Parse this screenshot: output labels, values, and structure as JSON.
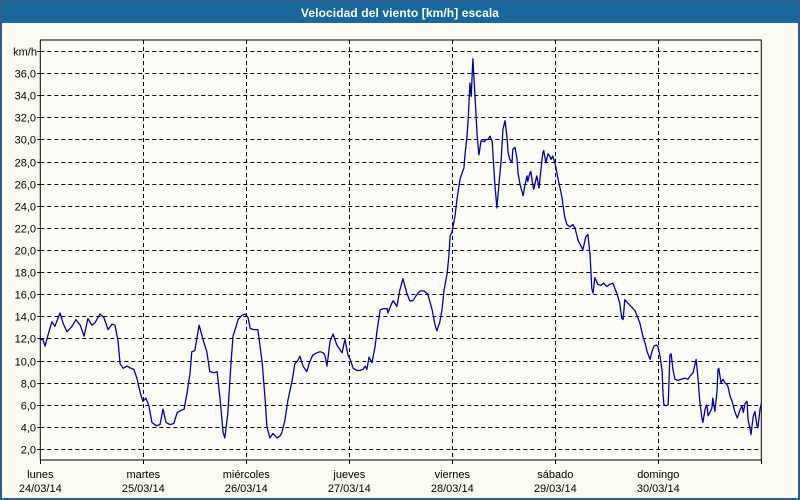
{
  "title": "Velocidad del viento [km/h] escala",
  "colors": {
    "titlebar_bg": "#17699d",
    "title_text": "#ffffff",
    "window_border": "#2d5e8c",
    "page_bg": "#fbfbf1",
    "plot_bg": "#fdfdf8",
    "grid": "#000000",
    "series_line": "#0000a6"
  },
  "chart_data": {
    "type": "line",
    "title": "Velocidad del viento [km/h] escala",
    "ylabel": "km/h",
    "unit_label": "km/h",
    "ylim": [
      1,
      39
    ],
    "y_grid_step": 2,
    "y_tick_labels": [
      "2,0",
      "4,0",
      "6,0",
      "8,0",
      "10,0",
      "12,0",
      "14,0",
      "16,0",
      "18,0",
      "20,0",
      "22,0",
      "24,0",
      "26,0",
      "28,0",
      "30,0",
      "32,0",
      "34,0",
      "36,0"
    ],
    "grid": "dashed",
    "legend": "none",
    "hours_total": 168,
    "x_days": [
      {
        "name": "lunes",
        "date": "24/03/14"
      },
      {
        "name": "martes",
        "date": "25/03/14"
      },
      {
        "name": "miércoles",
        "date": "26/03/14"
      },
      {
        "name": "jueves",
        "date": "27/03/14"
      },
      {
        "name": "viernes",
        "date": "28/03/14"
      },
      {
        "name": "sábado",
        "date": "29/03/14"
      },
      {
        "name": "domingo",
        "date": "30/03/14"
      }
    ],
    "series": [
      {
        "name": "Velocidad del viento [km/h]",
        "color": "#0000a6",
        "points_t_hours_v_kmh": [
          [
            0,
            11.9
          ],
          [
            0.6,
            11.9
          ],
          [
            1.1,
            11.3
          ],
          [
            1.8,
            12.3
          ],
          [
            2.7,
            13.5
          ],
          [
            3.4,
            13.1
          ],
          [
            4.6,
            14.3
          ],
          [
            5.3,
            13.4
          ],
          [
            6.2,
            12.6
          ],
          [
            7.4,
            13.1
          ],
          [
            8.3,
            13.7
          ],
          [
            9.3,
            13.2
          ],
          [
            10.2,
            12.2
          ],
          [
            11.1,
            13.8
          ],
          [
            12,
            13.2
          ],
          [
            12.7,
            13.4
          ],
          [
            13.9,
            14.2
          ],
          [
            14.8,
            13.9
          ],
          [
            15.8,
            12.8
          ],
          [
            16.7,
            13.3
          ],
          [
            17.4,
            13.2
          ],
          [
            18.1,
            11.8
          ],
          [
            18.6,
            9.7
          ],
          [
            19.3,
            9.3
          ],
          [
            20.2,
            9.5
          ],
          [
            21.1,
            9.3
          ],
          [
            21.8,
            9.2
          ],
          [
            22.5,
            8.4
          ],
          [
            23.2,
            7.2
          ],
          [
            23.9,
            6.3
          ],
          [
            24.6,
            6.6
          ],
          [
            25.3,
            5.9
          ],
          [
            26,
            4.4
          ],
          [
            27,
            4.1
          ],
          [
            27.9,
            4.2
          ],
          [
            28.6,
            5.6
          ],
          [
            29.3,
            4.4
          ],
          [
            30.2,
            4.2
          ],
          [
            31.1,
            4.3
          ],
          [
            31.9,
            5.3
          ],
          [
            32.8,
            5.5
          ],
          [
            33.5,
            5.6
          ],
          [
            34.2,
            7.1
          ],
          [
            34.9,
            8.9
          ],
          [
            35.3,
            10.8
          ],
          [
            36,
            10.9
          ],
          [
            37,
            13.2
          ],
          [
            37.9,
            11.9
          ],
          [
            38.8,
            10.8
          ],
          [
            39.5,
            9
          ],
          [
            40.5,
            8.9
          ],
          [
            41.2,
            9
          ],
          [
            41.9,
            6.5
          ],
          [
            42.6,
            3.5
          ],
          [
            43,
            3
          ],
          [
            43.7,
            5.2
          ],
          [
            44.4,
            9.5
          ],
          [
            44.9,
            12.2
          ],
          [
            45.4,
            12.8
          ],
          [
            46.1,
            13.7
          ],
          [
            47,
            14.1
          ],
          [
            47.7,
            14.2
          ],
          [
            48.4,
            13.9
          ],
          [
            48.9,
            12.9
          ],
          [
            49.8,
            12.8
          ],
          [
            50.7,
            12.8
          ],
          [
            51.7,
            9.8
          ],
          [
            52.4,
            6.4
          ],
          [
            52.8,
            4
          ],
          [
            53.5,
            3
          ],
          [
            54.2,
            3.4
          ],
          [
            55.2,
            3
          ],
          [
            55.9,
            3.2
          ],
          [
            56.3,
            3.5
          ],
          [
            57,
            4.6
          ],
          [
            57.7,
            6.4
          ],
          [
            58.7,
            8.2
          ],
          [
            59.3,
            9.7
          ],
          [
            60,
            10
          ],
          [
            60.5,
            10.4
          ],
          [
            61.2,
            9.5
          ],
          [
            62.1,
            9
          ],
          [
            62.8,
            9.9
          ],
          [
            63.5,
            10.5
          ],
          [
            64.5,
            10.7
          ],
          [
            65.2,
            10.8
          ],
          [
            65.9,
            10.7
          ],
          [
            66.3,
            10.5
          ],
          [
            66.8,
            9.5
          ],
          [
            67.5,
            11.7
          ],
          [
            68.2,
            12.4
          ],
          [
            69.1,
            11.4
          ],
          [
            69.8,
            11
          ],
          [
            70.3,
            10.7
          ],
          [
            71,
            11.9
          ],
          [
            71.7,
            10.5
          ],
          [
            72.2,
            10.1
          ],
          [
            72.9,
            9.3
          ],
          [
            73.8,
            9.1
          ],
          [
            74.5,
            9.1
          ],
          [
            75.2,
            9.2
          ],
          [
            75.7,
            9.5
          ],
          [
            76.1,
            9.2
          ],
          [
            76.6,
            10.3
          ],
          [
            77.3,
            9.8
          ],
          [
            78,
            11.3
          ],
          [
            78.5,
            12.8
          ],
          [
            79.2,
            14.6
          ],
          [
            80.1,
            14.7
          ],
          [
            80.8,
            14.7
          ],
          [
            81,
            14.3
          ],
          [
            81.9,
            15.2
          ],
          [
            82.2,
            15.4
          ],
          [
            83.1,
            14.9
          ],
          [
            83.8,
            16.4
          ],
          [
            84.5,
            17.4
          ],
          [
            85.4,
            16.1
          ],
          [
            86.1,
            15.4
          ],
          [
            86.8,
            15.4
          ],
          [
            87.8,
            16
          ],
          [
            88.5,
            16.3
          ],
          [
            89.4,
            16.3
          ],
          [
            90.3,
            16
          ],
          [
            91.3,
            14.6
          ],
          [
            92,
            13.2
          ],
          [
            92.4,
            12.7
          ],
          [
            93.1,
            13.5
          ],
          [
            93.6,
            14.6
          ],
          [
            94.1,
            16.4
          ],
          [
            94.8,
            17.9
          ],
          [
            95.2,
            19.5
          ],
          [
            95.5,
            21.3
          ],
          [
            95.9,
            21.6
          ],
          [
            96.6,
            23
          ],
          [
            97.1,
            24.6
          ],
          [
            97.8,
            26.4
          ],
          [
            98.3,
            27
          ],
          [
            98.7,
            27.4
          ],
          [
            99,
            28.8
          ],
          [
            99.4,
            30.2
          ],
          [
            99.7,
            31.8
          ],
          [
            100.1,
            35.1
          ],
          [
            100.4,
            33.9
          ],
          [
            100.8,
            37.3
          ],
          [
            101.3,
            33.9
          ],
          [
            101.8,
            30.3
          ],
          [
            102.2,
            28.6
          ],
          [
            102.7,
            29.9
          ],
          [
            103.4,
            29.8
          ],
          [
            103.9,
            30
          ],
          [
            104.3,
            30
          ],
          [
            104.8,
            30.3
          ],
          [
            105.3,
            29.8
          ],
          [
            105.9,
            26
          ],
          [
            106.4,
            23.8
          ],
          [
            106.9,
            26.1
          ],
          [
            107.4,
            28.2
          ],
          [
            107.8,
            30.9
          ],
          [
            108.3,
            31.7
          ],
          [
            108.8,
            30
          ],
          [
            109,
            28.8
          ],
          [
            109.4,
            28.2
          ],
          [
            109.9,
            27.9
          ],
          [
            110.1,
            29.1
          ],
          [
            110.6,
            29.3
          ],
          [
            111.1,
            28.2
          ],
          [
            111.3,
            27
          ],
          [
            111.8,
            25.9
          ],
          [
            112.3,
            25.2
          ],
          [
            112.5,
            24.9
          ],
          [
            112.9,
            25.8
          ],
          [
            113.4,
            26.7
          ],
          [
            113.6,
            26.2
          ],
          [
            114.1,
            27
          ],
          [
            114.3,
            27.1
          ],
          [
            114.8,
            25.8
          ],
          [
            115,
            25.5
          ],
          [
            115.5,
            26.4
          ],
          [
            115.7,
            26.7
          ],
          [
            116.2,
            25.6
          ],
          [
            116.9,
            28.2
          ],
          [
            117.1,
            28.8
          ],
          [
            117.3,
            29
          ],
          [
            117.8,
            27.9
          ],
          [
            118.3,
            28.7
          ],
          [
            118.7,
            28.5
          ],
          [
            119,
            28.2
          ],
          [
            119.4,
            28.5
          ],
          [
            119.9,
            27.9
          ],
          [
            120.6,
            26.5
          ],
          [
            121.5,
            24.9
          ],
          [
            122.2,
            23
          ],
          [
            122.7,
            22.3
          ],
          [
            123.4,
            22.1
          ],
          [
            124.1,
            22.3
          ],
          [
            124.6,
            22
          ],
          [
            125.3,
            20.9
          ],
          [
            126.2,
            20.2
          ],
          [
            126.4,
            20
          ],
          [
            127.1,
            21.2
          ],
          [
            127.6,
            21.4
          ],
          [
            128.1,
            19.5
          ],
          [
            128.5,
            16.5
          ],
          [
            128.8,
            16.1
          ],
          [
            129.2,
            17.5
          ],
          [
            129.9,
            16.9
          ],
          [
            130.6,
            16.8
          ],
          [
            131.3,
            17
          ],
          [
            132,
            16.7
          ],
          [
            132.7,
            16.9
          ],
          [
            133.4,
            17
          ],
          [
            134.3,
            16.1
          ],
          [
            135,
            15.2
          ],
          [
            135.5,
            13.8
          ],
          [
            135.8,
            13.7
          ],
          [
            136.2,
            15.5
          ],
          [
            136.9,
            15.2
          ],
          [
            137.4,
            15
          ],
          [
            138.6,
            14.5
          ],
          [
            139.3,
            13.8
          ],
          [
            139.7,
            13.4
          ],
          [
            140.4,
            12.2
          ],
          [
            140.9,
            11.6
          ],
          [
            141.4,
            10.8
          ],
          [
            142.1,
            10.1
          ],
          [
            142.5,
            10.8
          ],
          [
            143,
            11.3
          ],
          [
            143.5,
            11.4
          ],
          [
            143.9,
            11.3
          ],
          [
            144.4,
            10.4
          ],
          [
            144.9,
            9
          ],
          [
            145.1,
            7
          ],
          [
            145.3,
            6
          ],
          [
            145.8,
            5.9
          ],
          [
            146.3,
            6
          ],
          [
            146.7,
            10.5
          ],
          [
            147,
            10.6
          ],
          [
            147.4,
            9.2
          ],
          [
            147.9,
            8.3
          ],
          [
            148.6,
            8.2
          ],
          [
            149.3,
            8.3
          ],
          [
            150.2,
            8.4
          ],
          [
            150.9,
            8.3
          ],
          [
            151.4,
            8.6
          ],
          [
            152.1,
            8.9
          ],
          [
            152.5,
            9.6
          ],
          [
            152.8,
            10.1
          ],
          [
            153.2,
            8.6
          ],
          [
            153.7,
            6.2
          ],
          [
            154.2,
            4.7
          ],
          [
            154.4,
            4.4
          ],
          [
            154.9,
            5.6
          ],
          [
            155.3,
            6
          ],
          [
            155.6,
            5
          ],
          [
            156,
            5.3
          ],
          [
            156.5,
            5.7
          ],
          [
            156.7,
            6.6
          ],
          [
            157.2,
            5.4
          ],
          [
            157.7,
            7.3
          ],
          [
            157.9,
            9.2
          ],
          [
            158.1,
            9.3
          ],
          [
            158.6,
            8
          ],
          [
            159.1,
            8.3
          ],
          [
            159.5,
            8
          ],
          [
            160,
            7.8
          ],
          [
            160.2,
            7.7
          ],
          [
            160.7,
            6.8
          ],
          [
            161.2,
            6.3
          ],
          [
            161.9,
            5.3
          ],
          [
            162.4,
            4.8
          ],
          [
            163.1,
            5.6
          ],
          [
            163.5,
            5.9
          ],
          [
            163.8,
            5.3
          ],
          [
            164.2,
            6.1
          ],
          [
            164.7,
            6.3
          ],
          [
            164.9,
            4.7
          ],
          [
            165.4,
            3.8
          ],
          [
            165.6,
            3.3
          ],
          [
            166.1,
            4.9
          ],
          [
            166.5,
            5.4
          ],
          [
            167,
            4.1
          ],
          [
            167.2,
            3.9
          ],
          [
            167.7,
            5.6
          ],
          [
            168,
            6.1
          ]
        ]
      }
    ]
  }
}
